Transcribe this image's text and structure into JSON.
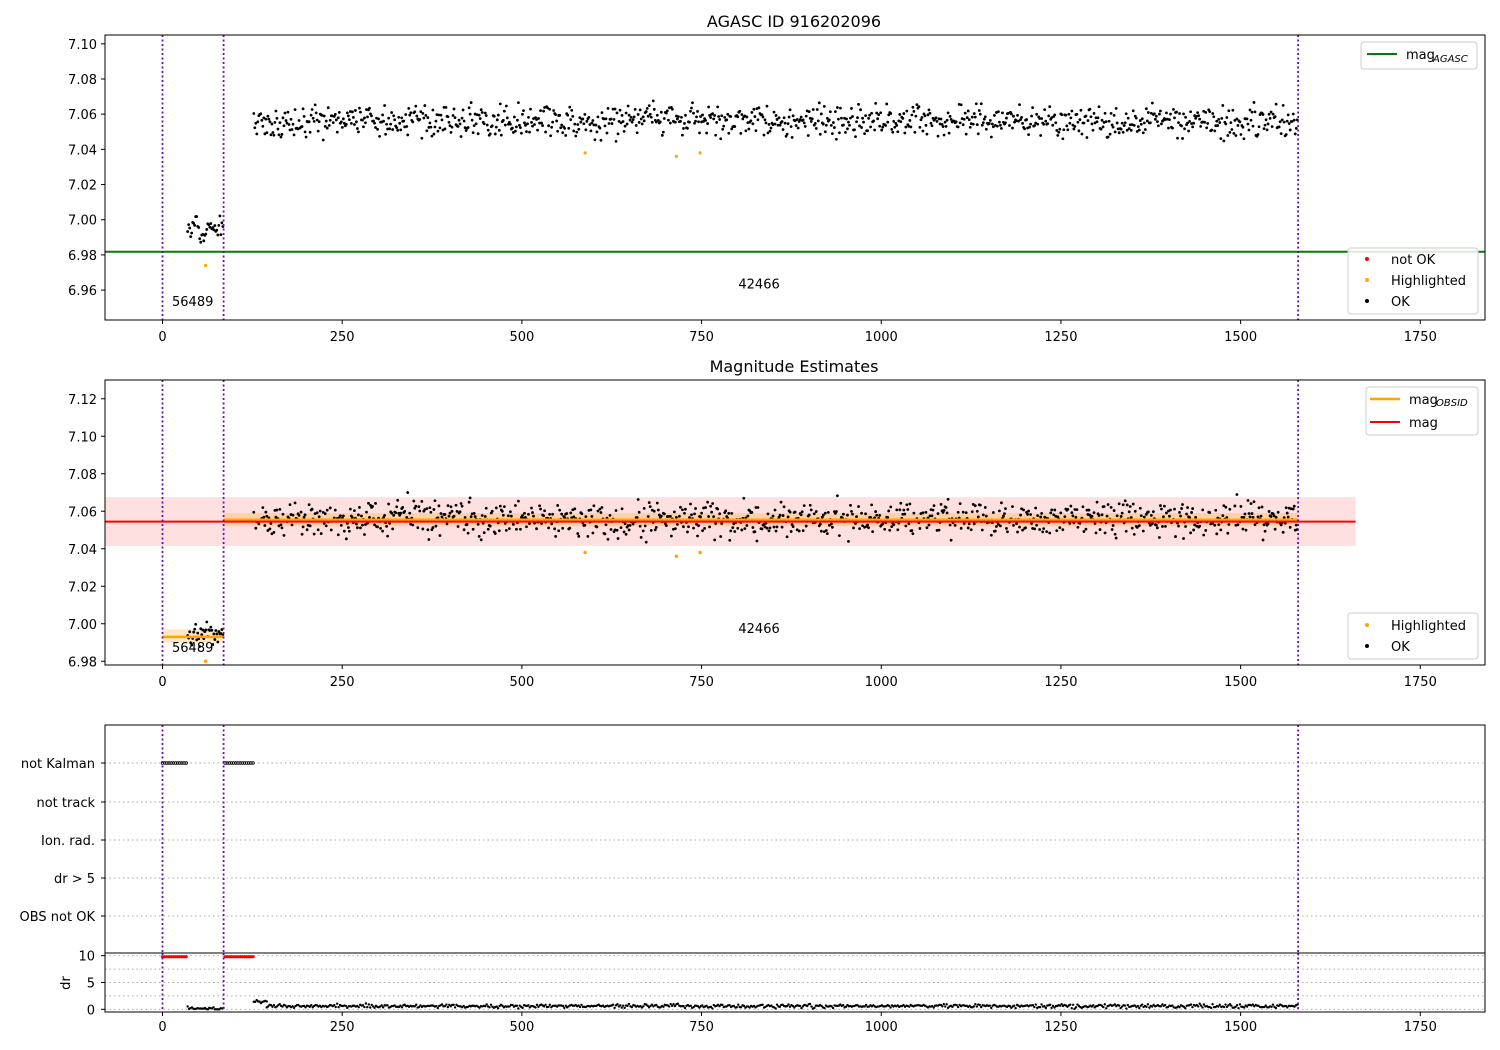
{
  "chart_data": [
    {
      "type": "scatter",
      "title": "AGASC ID 916202096",
      "xlim": [
        -80,
        1840
      ],
      "ylim": [
        6.943,
        7.105
      ],
      "x_ticks": [
        0,
        250,
        500,
        750,
        1000,
        1250,
        1500,
        1750
      ],
      "y_ticks": [
        6.96,
        6.98,
        7.0,
        7.02,
        7.04,
        7.06,
        7.08,
        7.1
      ],
      "y_tick_labels": [
        "6.96",
        "6.98",
        "7.00",
        "7.02",
        "7.04",
        "7.06",
        "7.08",
        "7.10"
      ],
      "obsid_boundaries": [
        0,
        85,
        1580
      ],
      "obsid_labels": [
        {
          "text": "56489",
          "x": 42,
          "y": 6.951
        },
        {
          "text": "42466",
          "x": 830,
          "y": 6.961
        }
      ],
      "reference_lines": [
        {
          "name": "mag_AGASC",
          "y": 6.9818,
          "color": "#008000"
        }
      ],
      "legend_top": {
        "placement": "top-right",
        "entries": [
          {
            "base": "mag",
            "sub": "AGASC",
            "color": "#008000"
          }
        ]
      },
      "legend_bottom": {
        "placement": "lower-right",
        "entries": [
          {
            "label": "not OK",
            "color": "#ff0000"
          },
          {
            "label": "Highlighted",
            "color": "#ffa500"
          },
          {
            "label": "OK",
            "color": "#000000"
          }
        ]
      },
      "segments": [
        {
          "x_start": 35,
          "x_end": 85,
          "mean": 6.994,
          "noise": 0.0035
        },
        {
          "x_start": 127,
          "x_end": 1580,
          "mean": 7.056,
          "noise": 0.0045
        }
      ],
      "highlighted_points": [
        [
          60,
          6.974
        ],
        [
          588,
          7.038
        ],
        [
          715,
          7.036
        ],
        [
          748,
          7.038
        ]
      ]
    },
    {
      "type": "scatter",
      "title": "Magnitude Estimates",
      "xlim": [
        -80,
        1840
      ],
      "ylim": [
        6.978,
        7.13
      ],
      "x_ticks": [
        0,
        250,
        500,
        750,
        1000,
        1250,
        1500,
        1750
      ],
      "y_ticks": [
        6.98,
        7.0,
        7.02,
        7.04,
        7.06,
        7.08,
        7.1,
        7.12
      ],
      "y_tick_labels": [
        "6.98",
        "7.00",
        "7.02",
        "7.04",
        "7.06",
        "7.08",
        "7.10",
        "7.12"
      ],
      "obsid_boundaries": [
        0,
        85,
        1580
      ],
      "obsid_labels": [
        {
          "text": "56489",
          "x": 42,
          "y": 6.985
        },
        {
          "text": "42466",
          "x": 830,
          "y": 6.995
        }
      ],
      "mag_line": {
        "y": 7.0545,
        "x_start": -80,
        "x_end": 1660,
        "band": [
          7.0415,
          7.0675
        ],
        "color": "#ff0000"
      },
      "mag_obsid": [
        {
          "x_start": 0,
          "x_end": 85,
          "y": 6.993,
          "band": [
            6.99,
            6.997
          ]
        },
        {
          "x_start": 85,
          "x_end": 1580,
          "y": 7.0555,
          "band": [
            7.052,
            7.059
          ]
        }
      ],
      "legend_top": {
        "placement": "top-right",
        "entries": [
          {
            "base": "mag",
            "sub": "OBSID",
            "color": "#ffa500"
          },
          {
            "base": "mag",
            "sub": "",
            "color": "#ff0000"
          }
        ]
      },
      "legend_bottom": {
        "placement": "lower-right",
        "entries": [
          {
            "label": "Highlighted",
            "color": "#ffa500"
          },
          {
            "label": "OK",
            "color": "#000000"
          }
        ]
      },
      "highlighted_points": [
        [
          60,
          6.98
        ],
        [
          588,
          7.038
        ],
        [
          715,
          7.036
        ],
        [
          748,
          7.038
        ]
      ]
    },
    {
      "type": "scatter",
      "title": "",
      "xlim": [
        -80,
        1840
      ],
      "flag_rows": [
        "not Kalman",
        "not track",
        "Ion. rad.",
        "dr > 5",
        "OBS not OK"
      ],
      "flag_segments": [
        {
          "row": "not Kalman",
          "x_start": 0,
          "x_end": 35
        },
        {
          "row": "not Kalman",
          "x_start": 87,
          "x_end": 127
        }
      ],
      "obsid_boundaries": [
        0,
        85,
        1580
      ]
    },
    {
      "type": "scatter",
      "ylabel": "dr",
      "xlim": [
        -80,
        1840
      ],
      "ylim": [
        -0.5,
        10.5
      ],
      "x_ticks": [
        0,
        250,
        500,
        750,
        1000,
        1250,
        1500,
        1750
      ],
      "y_ticks": [
        0,
        5,
        10
      ],
      "gridlines": [
        0,
        2.5,
        5,
        7.5,
        10
      ],
      "red_points": [
        {
          "x_start": 0,
          "x_end": 35,
          "y": 9.8
        },
        {
          "x_start": 87,
          "x_end": 127,
          "y": 9.8
        }
      ],
      "dr_segments": [
        {
          "x_start": 35,
          "x_end": 85,
          "y": 0.15
        },
        {
          "x_start": 127,
          "x_end": 145,
          "y": 1.4
        },
        {
          "x_start": 145,
          "x_end": 1580,
          "y": 0.6
        }
      ],
      "obsid_boundaries": [
        0,
        85,
        1580
      ]
    }
  ]
}
